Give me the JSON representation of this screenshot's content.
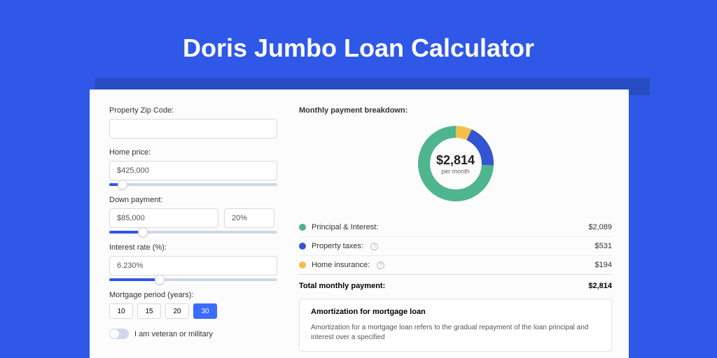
{
  "colors": {
    "page_bg": "#2f58e8",
    "card_shadow": "#274bc1",
    "card_bg": "#fcfcfc",
    "input_border": "#d9d9d9",
    "slider_track": "#d0d7e8",
    "slider_fill": "#2f58e8",
    "period_active_bg": "#3b6bff",
    "principal": "#4fb58f",
    "taxes": "#3355d1",
    "insurance": "#f0c04a"
  },
  "title": "Doris Jumbo Loan Calculator",
  "form": {
    "zip": {
      "label": "Property Zip Code:",
      "value": ""
    },
    "home_price": {
      "label": "Home price:",
      "value": "$425,000",
      "slider_pct": 8
    },
    "down_payment": {
      "label": "Down payment:",
      "value": "$85,000",
      "pct": "20%",
      "slider_pct": 20
    },
    "interest_rate": {
      "label": "Interest rate (%):",
      "value": "6.230%",
      "slider_pct": 30
    },
    "period": {
      "label": "Mortgage period (years):",
      "options": [
        "10",
        "15",
        "20",
        "30"
      ],
      "selected": "30"
    },
    "veteran": {
      "label": "I am veteran or military",
      "checked": false
    }
  },
  "breakdown": {
    "title": "Monthly payment breakdown:",
    "amount": "$2,814",
    "sub": "per month",
    "items": [
      {
        "label": "Principal & Interest:",
        "value": "$2,089",
        "amount": 2089,
        "color": "#4fb58f",
        "info": false
      },
      {
        "label": "Property taxes:",
        "value": "$531",
        "amount": 531,
        "color": "#3355d1",
        "info": true
      },
      {
        "label": "Home insurance:",
        "value": "$194",
        "amount": 194,
        "color": "#f0c04a",
        "info": true
      }
    ],
    "total_label": "Total monthly payment:",
    "total_value": "$2,814",
    "total_amount": 2814
  },
  "amortization": {
    "title": "Amortization for mortgage loan",
    "text": "Amortization for a mortgage loan refers to the gradual repayment of the loan principal and interest over a specified"
  }
}
